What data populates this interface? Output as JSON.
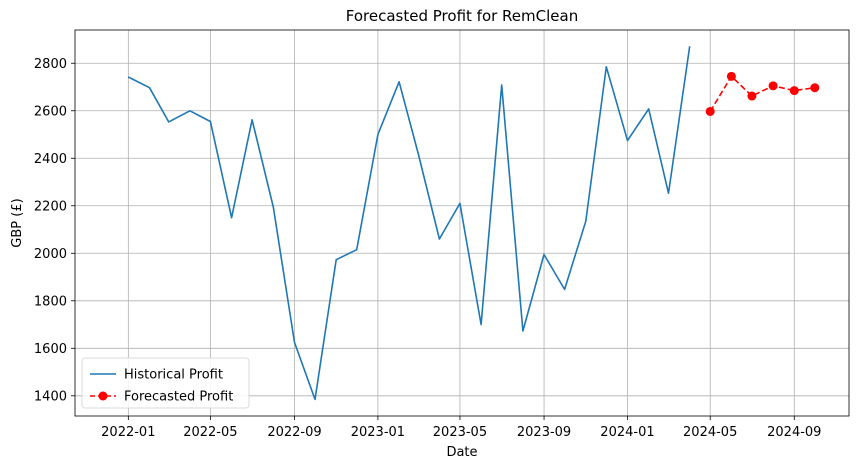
{
  "chart_data": {
    "type": "line",
    "title": "Forecasted Profit for RemClean",
    "xlabel": "Date",
    "ylabel": "GBP (£)",
    "grid": true,
    "legend_position": "lower-left",
    "x_ticks": [
      "2022-01",
      "2022-05",
      "2022-09",
      "2023-01",
      "2023-05",
      "2023-09",
      "2024-01",
      "2024-05",
      "2024-09"
    ],
    "y_ticks": [
      1400,
      1600,
      1800,
      2000,
      2200,
      2400,
      2600,
      2800
    ],
    "xlim": [
      "2021-10-15",
      "2024-11-20"
    ],
    "ylim": [
      1315,
      2940
    ],
    "series": [
      {
        "name": "Historical Profit",
        "color": "#1f77b4",
        "style": "solid",
        "marker": "none",
        "x": [
          "2022-01",
          "2022-02",
          "2022-03",
          "2022-04",
          "2022-05",
          "2022-06",
          "2022-07",
          "2022-08",
          "2022-09",
          "2022-10",
          "2022-11",
          "2022-12",
          "2023-01",
          "2023-02",
          "2023-03",
          "2023-04",
          "2023-05",
          "2023-06",
          "2023-07",
          "2023-08",
          "2023-09",
          "2023-10",
          "2023-11",
          "2023-12",
          "2024-01",
          "2024-02",
          "2024-03",
          "2024-04"
        ],
        "values": [
          2742,
          2697,
          2553,
          2600,
          2555,
          2150,
          2562,
          2195,
          1625,
          1385,
          1973,
          2015,
          2500,
          2722,
          2420,
          2060,
          2210,
          1700,
          2708,
          1673,
          1995,
          1848,
          2135,
          2785,
          2475,
          2608,
          2253,
          2872
        ]
      },
      {
        "name": "Forecasted Profit",
        "color": "#ff0000",
        "style": "dashed",
        "marker": "circle",
        "x": [
          "2024-05",
          "2024-06",
          "2024-07",
          "2024-08",
          "2024-09",
          "2024-10"
        ],
        "values": [
          2597,
          2745,
          2662,
          2705,
          2685,
          2697
        ]
      }
    ]
  }
}
